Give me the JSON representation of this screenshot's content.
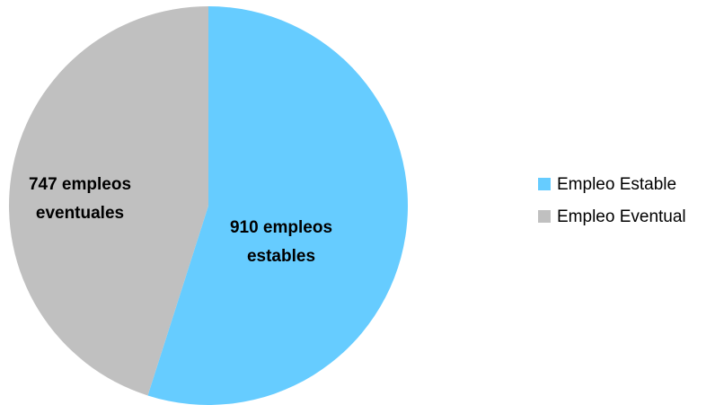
{
  "chart_data": {
    "type": "pie",
    "title": "",
    "start_angle_deg": 0,
    "direction": "clockwise",
    "slices": [
      {
        "name": "Empleo Estable",
        "value": 910,
        "color": "#66CCFF",
        "label_lines": [
          "910 empleos",
          "estables"
        ]
      },
      {
        "name": "Empleo Eventual",
        "value": 747,
        "color": "#C0C0C0",
        "label_lines": [
          "747 empleos",
          "eventuales"
        ]
      }
    ],
    "legend": {
      "position": "right",
      "items": [
        "Empleo Estable",
        "Empleo Eventual"
      ]
    }
  }
}
